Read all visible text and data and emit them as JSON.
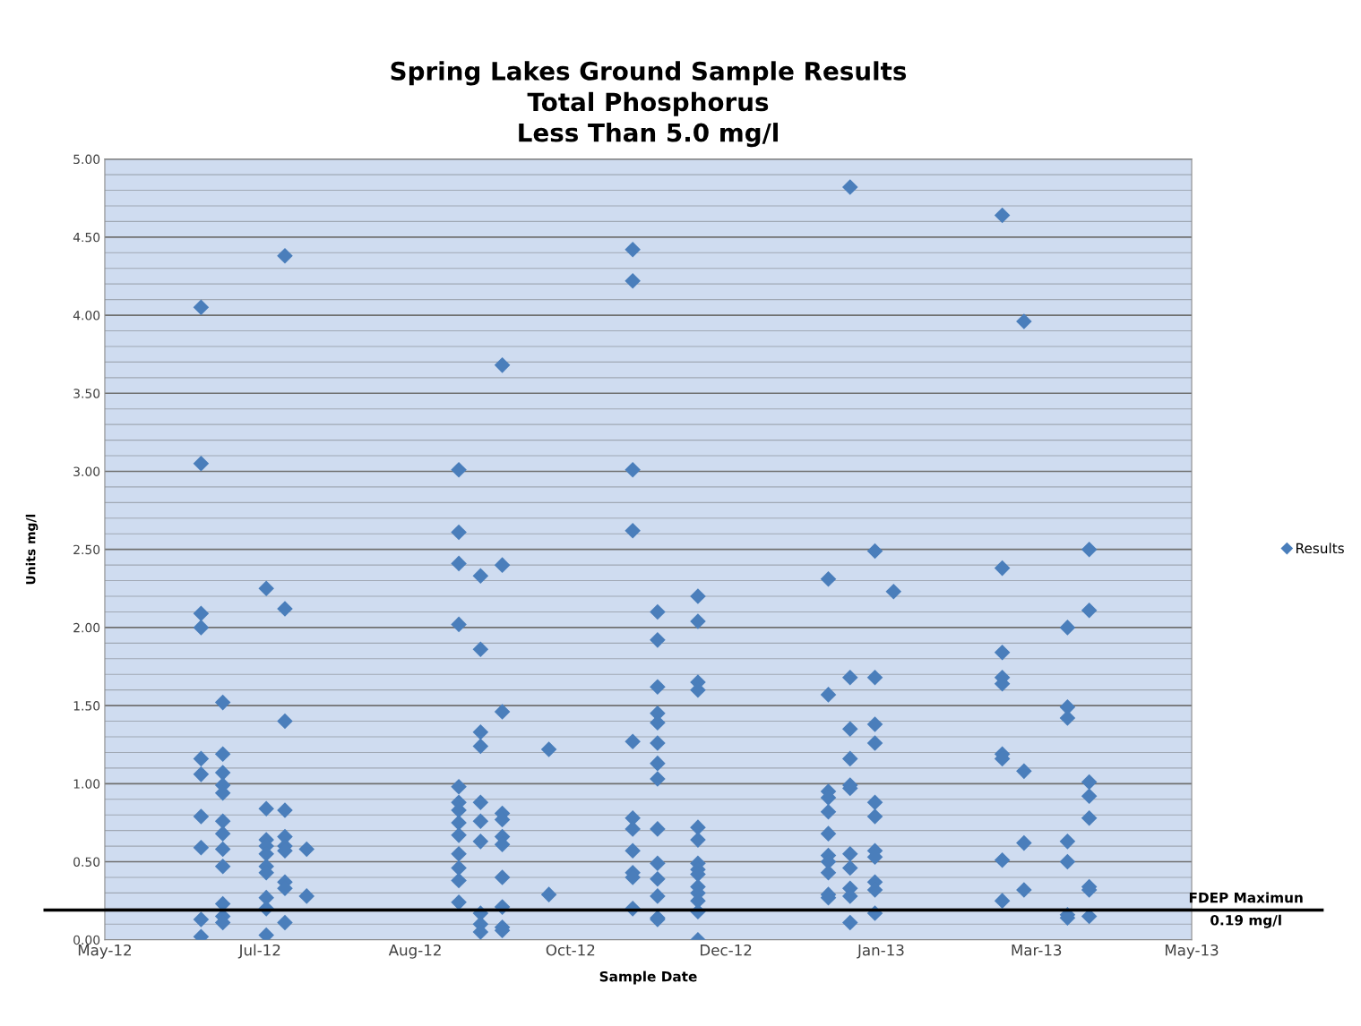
{
  "chart_data": {
    "type": "scatter",
    "title": "Spring Lakes Ground Sample Results\nTotal Phosphorus\nLess Than 5.0 mg/l",
    "xlabel": "Sample Date",
    "ylabel": "Units mg/l",
    "series": [
      {
        "name": "Results",
        "color": "#4a7ebb",
        "x": [
          "2012-06-20",
          "2012-06-20",
          "2012-06-20",
          "2012-06-20",
          "2012-06-20",
          "2012-06-20",
          "2012-06-20",
          "2012-06-20",
          "2012-06-20",
          "2012-06-20",
          "2012-06-27",
          "2012-06-27",
          "2012-06-27",
          "2012-06-27",
          "2012-06-27",
          "2012-06-27",
          "2012-06-27",
          "2012-06-27",
          "2012-06-27",
          "2012-06-27",
          "2012-06-27",
          "2012-06-27",
          "2012-07-11",
          "2012-07-11",
          "2012-07-11",
          "2012-07-11",
          "2012-07-11",
          "2012-07-11",
          "2012-07-11",
          "2012-07-11",
          "2012-07-11",
          "2012-07-11",
          "2012-07-17",
          "2012-07-17",
          "2012-07-17",
          "2012-07-17",
          "2012-07-17",
          "2012-07-17",
          "2012-07-17",
          "2012-07-17",
          "2012-07-17",
          "2012-07-17",
          "2012-07-24",
          "2012-07-24",
          "2012-09-11",
          "2012-09-11",
          "2012-09-11",
          "2012-09-11",
          "2012-09-11",
          "2012-09-11",
          "2012-09-11",
          "2012-09-11",
          "2012-09-11",
          "2012-09-11",
          "2012-09-11",
          "2012-09-11",
          "2012-09-11",
          "2012-09-18",
          "2012-09-18",
          "2012-09-18",
          "2012-09-18",
          "2012-09-18",
          "2012-09-18",
          "2012-09-18",
          "2012-09-18",
          "2012-09-18",
          "2012-09-18",
          "2012-09-25",
          "2012-09-25",
          "2012-09-25",
          "2012-09-25",
          "2012-09-25",
          "2012-09-25",
          "2012-09-25",
          "2012-09-25",
          "2012-09-25",
          "2012-09-25",
          "2012-09-25",
          "2012-10-10",
          "2012-10-10",
          "2012-11-06",
          "2012-11-06",
          "2012-11-06",
          "2012-11-06",
          "2012-11-06",
          "2012-11-06",
          "2012-11-06",
          "2012-11-06",
          "2012-11-06",
          "2012-11-06",
          "2012-11-06",
          "2012-11-14",
          "2012-11-14",
          "2012-11-14",
          "2012-11-14",
          "2012-11-14",
          "2012-11-14",
          "2012-11-14",
          "2012-11-14",
          "2012-11-14",
          "2012-11-14",
          "2012-11-14",
          "2012-11-14",
          "2012-11-14",
          "2012-11-14",
          "2012-11-27",
          "2012-11-27",
          "2012-11-27",
          "2012-11-27",
          "2012-11-27",
          "2012-11-27",
          "2012-11-27",
          "2012-11-27",
          "2012-11-27",
          "2012-11-27",
          "2012-11-27",
          "2012-11-27",
          "2012-11-27",
          "2012-11-27",
          "2013-01-08",
          "2013-01-08",
          "2013-01-08",
          "2013-01-08",
          "2013-01-08",
          "2013-01-08",
          "2013-01-08",
          "2013-01-08",
          "2013-01-08",
          "2013-01-08",
          "2013-01-08",
          "2013-01-15",
          "2013-01-15",
          "2013-01-15",
          "2013-01-15",
          "2013-01-15",
          "2013-01-15",
          "2013-01-15",
          "2013-01-15",
          "2013-01-15",
          "2013-01-15",
          "2013-01-15",
          "2013-01-23",
          "2013-01-23",
          "2013-01-23",
          "2013-01-23",
          "2013-01-23",
          "2013-01-23",
          "2013-01-23",
          "2013-01-23",
          "2013-01-23",
          "2013-01-23",
          "2013-01-23",
          "2013-01-29",
          "2013-03-05",
          "2013-03-05",
          "2013-03-05",
          "2013-03-05",
          "2013-03-05",
          "2013-03-05",
          "2013-03-05",
          "2013-03-05",
          "2013-03-05",
          "2013-03-12",
          "2013-03-12",
          "2013-03-12",
          "2013-03-12",
          "2013-03-26",
          "2013-03-26",
          "2013-03-26",
          "2013-03-26",
          "2013-03-26",
          "2013-03-26",
          "2013-03-26",
          "2013-04-02",
          "2013-04-02",
          "2013-04-02",
          "2013-04-02",
          "2013-04-02",
          "2013-04-02",
          "2013-04-02",
          "2013-04-02"
        ],
        "values": [
          4.05,
          3.05,
          2.09,
          2.0,
          1.16,
          1.06,
          0.79,
          0.59,
          0.13,
          0.02,
          1.52,
          1.19,
          1.07,
          0.99,
          0.94,
          0.76,
          0.68,
          0.58,
          0.47,
          0.23,
          0.15,
          0.11,
          2.25,
          0.84,
          0.64,
          0.6,
          0.55,
          0.47,
          0.43,
          0.27,
          0.2,
          0.03,
          4.38,
          2.12,
          1.4,
          0.83,
          0.66,
          0.6,
          0.57,
          0.37,
          0.33,
          0.11,
          0.58,
          0.28,
          3.01,
          2.61,
          2.41,
          2.02,
          0.98,
          0.88,
          0.83,
          0.75,
          0.67,
          0.55,
          0.46,
          0.38,
          0.24,
          2.33,
          1.86,
          1.33,
          1.24,
          0.88,
          0.76,
          0.63,
          0.17,
          0.1,
          0.05,
          3.68,
          2.4,
          1.46,
          0.81,
          0.77,
          0.66,
          0.61,
          0.4,
          0.21,
          0.08,
          0.06,
          1.22,
          0.29,
          4.42,
          4.22,
          3.01,
          2.62,
          1.27,
          0.78,
          0.71,
          0.57,
          0.43,
          0.4,
          0.2,
          2.1,
          1.92,
          1.62,
          1.45,
          1.39,
          1.26,
          1.13,
          1.03,
          0.71,
          0.49,
          0.39,
          0.28,
          0.14,
          0.13,
          2.2,
          2.04,
          1.65,
          1.6,
          0.72,
          0.64,
          0.49,
          0.45,
          0.42,
          0.34,
          0.3,
          0.25,
          0.18,
          0.0,
          2.31,
          1.57,
          0.95,
          0.91,
          0.82,
          0.68,
          0.54,
          0.5,
          0.43,
          0.29,
          0.27,
          4.82,
          1.68,
          1.35,
          1.16,
          0.99,
          0.97,
          0.55,
          0.46,
          0.33,
          0.28,
          0.11,
          2.49,
          1.68,
          1.38,
          1.26,
          0.88,
          0.79,
          0.57,
          0.53,
          0.37,
          0.32,
          0.17,
          2.23,
          4.64,
          2.38,
          1.84,
          1.68,
          1.64,
          1.19,
          1.16,
          0.51,
          0.25,
          3.96,
          1.08,
          0.62,
          0.32,
          2.0,
          1.49,
          1.42,
          0.63,
          0.5,
          0.16,
          0.14,
          2.5,
          2.11,
          1.01,
          0.92,
          0.78,
          0.34,
          0.32,
          0.15
        ]
      }
    ],
    "xlim": [
      "2012-05-20",
      "2013-05-05"
    ],
    "xticks": [
      {
        "value": "2012-05-20",
        "label": "May-12"
      },
      {
        "value": "2012-07-09",
        "label": "Jul-12"
      },
      {
        "value": "2012-08-28",
        "label": "Aug-12"
      },
      {
        "value": "2012-10-17",
        "label": "Oct-12"
      },
      {
        "value": "2012-12-06",
        "label": "Dec-12"
      },
      {
        "value": "2013-01-25",
        "label": "Jan-13"
      },
      {
        "value": "2013-03-16",
        "label": "Mar-13"
      },
      {
        "value": "2013-05-05",
        "label": "May-13"
      }
    ],
    "ylim": [
      0,
      5
    ],
    "yticks": [
      {
        "value": 0,
        "label": "0.00"
      },
      {
        "value": 0.5,
        "label": "0.50"
      },
      {
        "value": 1,
        "label": "1.00"
      },
      {
        "value": 1.5,
        "label": "1.50"
      },
      {
        "value": 2,
        "label": "2.00"
      },
      {
        "value": 2.5,
        "label": "2.50"
      },
      {
        "value": 3,
        "label": "3.00"
      },
      {
        "value": 3.5,
        "label": "3.50"
      },
      {
        "value": 4,
        "label": "4.00"
      },
      {
        "value": 4.5,
        "label": "4.50"
      },
      {
        "value": 5,
        "label": "5.00"
      }
    ],
    "grid": "y",
    "legend": "right",
    "marker": "diamond",
    "ref_lines": [
      {
        "axis": "y",
        "value": 0.19,
        "label": "FDEP Maximun\n0.19 mg/l",
        "color": "#000000",
        "line_style": "solid"
      }
    ]
  }
}
